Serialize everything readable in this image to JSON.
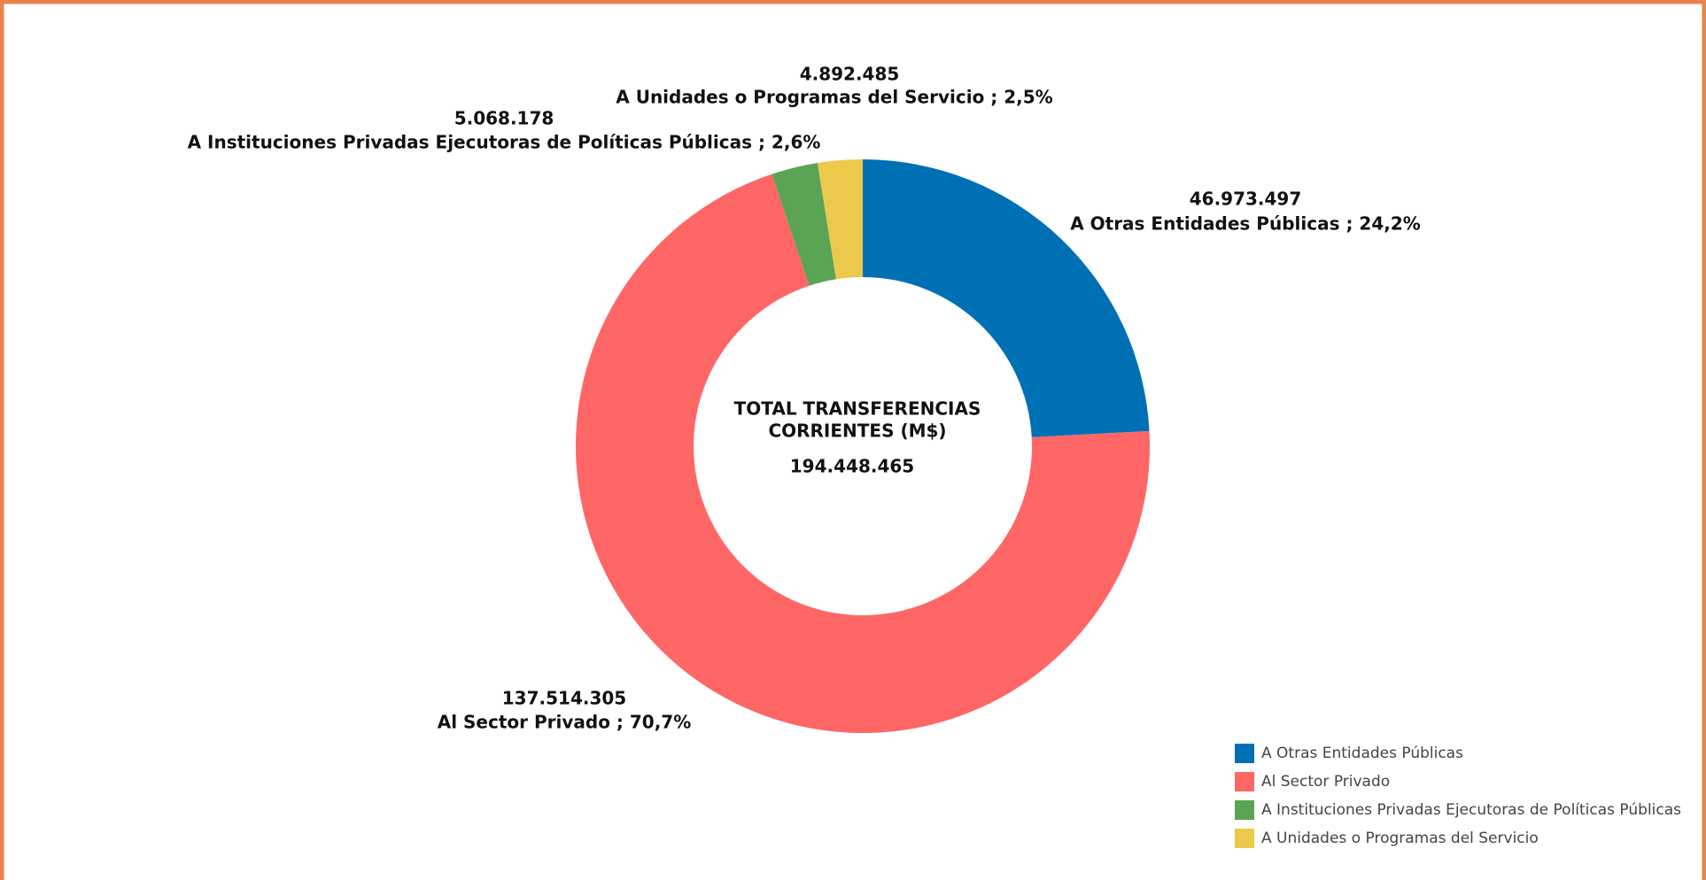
{
  "chart_data": {
    "type": "donut",
    "center_title": [
      "TOTAL TRANSFERENCIAS",
      "CORRIENTES (M$)"
    ],
    "center_value": "194.448.465",
    "categories": [
      "A Otras Entidades Públicas",
      "Al Sector Privado",
      "A Instituciones Privadas Ejecutoras de Políticas Públicas",
      "A Unidades o Programas del Servicio"
    ],
    "values": [
      46973497,
      137514305,
      5068178,
      4892485
    ],
    "value_labels": [
      "46.973.497",
      "137.514.305",
      "5.068.178",
      "4.892.485"
    ],
    "slice_labels": [
      "A Otras Entidades Públicas ; 24,2%",
      "Al Sector Privado ; 70,7%",
      "A Instituciones Privadas Ejecutoras de Políticas Públicas ; 2,6%",
      "A Unidades o Programas del Servicio ; 2,5%"
    ],
    "colors": [
      "#0070b5",
      "#ff6666",
      "#5aa454",
      "#ecc94b"
    ],
    "legend": "bottom-right"
  }
}
